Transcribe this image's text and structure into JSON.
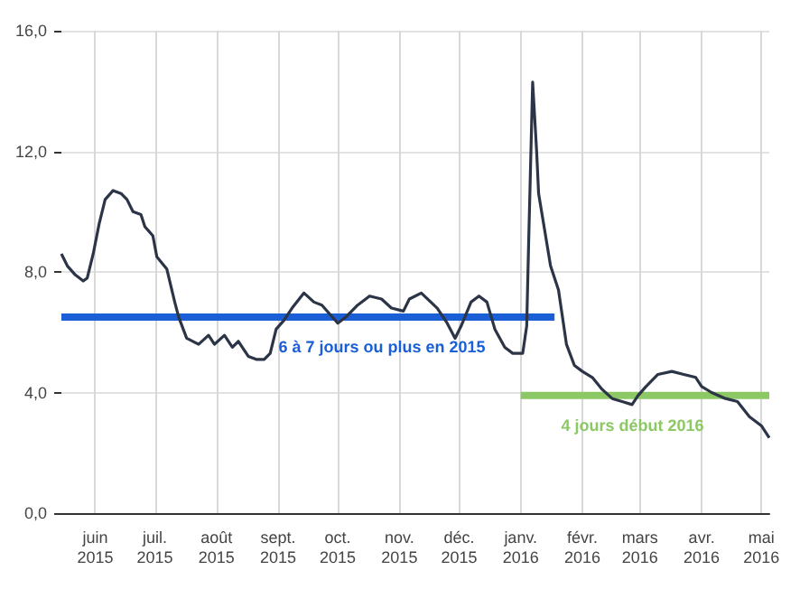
{
  "chart_data": {
    "type": "line",
    "xlim": [
      "2015-05-15",
      "2016-05-05"
    ],
    "xticks": [
      {
        "value": "2015-06-01",
        "label": "juin\n2015"
      },
      {
        "value": "2015-07-01",
        "label": "juil.\n2015"
      },
      {
        "value": "2015-08-01",
        "label": "août\n2015"
      },
      {
        "value": "2015-09-01",
        "label": "sept.\n2015"
      },
      {
        "value": "2015-10-01",
        "label": "oct.\n2015"
      },
      {
        "value": "2015-11-01",
        "label": "nov.\n2015"
      },
      {
        "value": "2015-12-01",
        "label": "déc.\n2015"
      },
      {
        "value": "2016-01-01",
        "label": "janv.\n2016"
      },
      {
        "value": "2016-02-01",
        "label": "févr.\n2016"
      },
      {
        "value": "2016-03-01",
        "label": "mars\n2016"
      },
      {
        "value": "2016-04-01",
        "label": "avr.\n2016"
      },
      {
        "value": "2016-05-01",
        "label": "mai\n2016"
      }
    ],
    "ylim": [
      0,
      16
    ],
    "yticks": [
      {
        "value": 0,
        "label": "0,0"
      },
      {
        "value": 4,
        "label": "4,0"
      },
      {
        "value": 8,
        "label": "8,0"
      },
      {
        "value": 12,
        "label": "12,0"
      },
      {
        "value": 16,
        "label": "16,0"
      }
    ],
    "grid": true,
    "legend": false,
    "marker": "none",
    "line_style": "solid",
    "series": [
      {
        "color": "#2c3547",
        "x": [
          "2015-05-15",
          "2015-05-18",
          "2015-05-22",
          "2015-05-26",
          "2015-05-28",
          "2015-05-31",
          "2015-06-03",
          "2015-06-06",
          "2015-06-10",
          "2015-06-14",
          "2015-06-17",
          "2015-06-20",
          "2015-06-24",
          "2015-06-26",
          "2015-06-30",
          "2015-07-02",
          "2015-07-07",
          "2015-07-11",
          "2015-07-13",
          "2015-07-17",
          "2015-07-23",
          "2015-07-28",
          "2015-07-31",
          "2015-08-05",
          "2015-08-09",
          "2015-08-12",
          "2015-08-17",
          "2015-08-21",
          "2015-08-25",
          "2015-08-28",
          "2015-08-31",
          "2015-09-04",
          "2015-09-08",
          "2015-09-14",
          "2015-09-19",
          "2015-09-23",
          "2015-09-27",
          "2015-10-01",
          "2015-10-05",
          "2015-10-11",
          "2015-10-17",
          "2015-10-23",
          "2015-10-28",
          "2015-11-03",
          "2015-11-06",
          "2015-11-12",
          "2015-11-20",
          "2015-11-25",
          "2015-11-29",
          "2015-12-02",
          "2015-12-07",
          "2015-12-11",
          "2015-12-15",
          "2015-12-19",
          "2015-12-24",
          "2015-12-28",
          "2016-01-02",
          "2016-01-04",
          "2016-01-05",
          "2016-01-07",
          "2016-01-09",
          "2016-01-10",
          "2016-01-13",
          "2016-01-16",
          "2016-01-20",
          "2016-01-24",
          "2016-01-28",
          "2016-02-01",
          "2016-02-06",
          "2016-02-11",
          "2016-02-16",
          "2016-02-21",
          "2016-02-26",
          "2016-02-29",
          "2016-03-04",
          "2016-03-10",
          "2016-03-17",
          "2016-03-23",
          "2016-03-29",
          "2016-04-01",
          "2016-04-06",
          "2016-04-13",
          "2016-04-19",
          "2016-04-25",
          "2016-05-01",
          "2016-05-05"
        ],
        "values": [
          8.6,
          8.2,
          7.9,
          7.7,
          7.8,
          8.6,
          9.6,
          10.4,
          10.7,
          10.6,
          10.4,
          10.0,
          9.9,
          9.5,
          9.2,
          8.5,
          8.1,
          7.0,
          6.5,
          5.8,
          5.6,
          5.9,
          5.6,
          5.9,
          5.5,
          5.7,
          5.2,
          5.1,
          5.1,
          5.3,
          6.1,
          6.4,
          6.8,
          7.3,
          7.0,
          6.9,
          6.6,
          6.3,
          6.5,
          6.9,
          7.2,
          7.1,
          6.8,
          6.7,
          7.1,
          7.3,
          6.8,
          6.3,
          5.8,
          6.2,
          7.0,
          7.2,
          7.0,
          6.1,
          5.5,
          5.3,
          5.3,
          6.2,
          9.0,
          14.3,
          12.0,
          10.6,
          9.4,
          8.2,
          7.4,
          5.6,
          4.9,
          4.7,
          4.5,
          4.1,
          3.8,
          3.7,
          3.6,
          3.9,
          4.2,
          4.6,
          4.7,
          4.6,
          4.5,
          4.2,
          4.0,
          3.8,
          3.7,
          3.2,
          2.9,
          2.5
        ]
      },
      {
        "type": "line",
        "name": "6 à 7 jours ou plus en 2015",
        "color": "#1a5fd6",
        "x": [
          "2015-05-15",
          "2016-01-18"
        ],
        "values": [
          6.5,
          6.5
        ]
      },
      {
        "type": "line",
        "name": "4 jours début 2016",
        "color": "#8cc864",
        "x": [
          "2016-01-01",
          "2016-05-05"
        ],
        "values": [
          3.9,
          3.9
        ]
      }
    ]
  }
}
